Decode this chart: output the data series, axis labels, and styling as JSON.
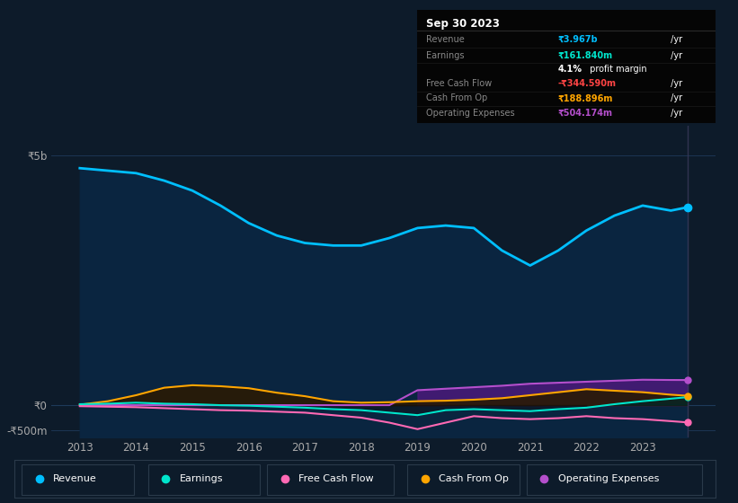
{
  "bg_color": "#0d1b2a",
  "plot_bg_color": "#0d1b2a",
  "years": [
    2013.0,
    2013.5,
    2014.0,
    2014.5,
    2015.0,
    2015.5,
    2016.0,
    2016.5,
    2017.0,
    2017.5,
    2018.0,
    2018.5,
    2019.0,
    2019.5,
    2020.0,
    2020.5,
    2021.0,
    2021.5,
    2022.0,
    2022.5,
    2023.0,
    2023.5,
    2023.8
  ],
  "revenue": [
    4750,
    4700,
    4650,
    4500,
    4300,
    4000,
    3650,
    3400,
    3250,
    3200,
    3200,
    3350,
    3550,
    3600,
    3550,
    3100,
    2800,
    3100,
    3500,
    3800,
    4000,
    3900,
    3967
  ],
  "earnings": [
    20,
    30,
    50,
    30,
    20,
    0,
    -10,
    -30,
    -50,
    -80,
    -100,
    -150,
    -200,
    -100,
    -80,
    -100,
    -120,
    -80,
    -50,
    20,
    80,
    130,
    162
  ],
  "fcf": [
    -20,
    -30,
    -40,
    -60,
    -80,
    -100,
    -110,
    -130,
    -150,
    -200,
    -250,
    -350,
    -480,
    -350,
    -220,
    -260,
    -280,
    -260,
    -220,
    -260,
    -280,
    -320,
    -345
  ],
  "cash_op": [
    10,
    80,
    200,
    350,
    400,
    380,
    340,
    250,
    180,
    80,
    50,
    60,
    80,
    90,
    110,
    140,
    200,
    260,
    320,
    290,
    260,
    210,
    189
  ],
  "op_exp": [
    0,
    0,
    0,
    0,
    0,
    0,
    0,
    0,
    0,
    0,
    0,
    0,
    300,
    330,
    360,
    390,
    430,
    450,
    470,
    490,
    510,
    505,
    504
  ],
  "revenue_color": "#00bfff",
  "earnings_color": "#00e5cc",
  "fcf_color": "#ff69b4",
  "cash_op_color": "#ffa500",
  "op_exp_color": "#b44fcc",
  "ylabel_5b": "₹5b",
  "ylabel_0": "₹0",
  "ylabel_neg500m": "-₹500m",
  "xticklabels": [
    "2013",
    "2014",
    "2015",
    "2016",
    "2017",
    "2018",
    "2019",
    "2020",
    "2021",
    "2022",
    "2023"
  ],
  "xtick_positions": [
    2013,
    2014,
    2015,
    2016,
    2017,
    2018,
    2019,
    2020,
    2021,
    2022,
    2023
  ],
  "ylim_min": -650,
  "ylim_max": 5600,
  "xlim_min": 2012.5,
  "xlim_max": 2024.3,
  "vline_x": 2023.8,
  "dot_x": 2023.8,
  "dot_revenue": 3967,
  "dot_earnings": 162,
  "dot_fcf": -345,
  "dot_cash_op": 189,
  "dot_op_exp": 504,
  "tooltip_title": "Sep 30 2023",
  "tooltip_rows": [
    {
      "label": "Revenue",
      "value": "₹3.967b",
      "suffix": " /yr",
      "vcolor": "#00bfff",
      "bold": true
    },
    {
      "label": "Earnings",
      "value": "₹161.840m",
      "suffix": " /yr",
      "vcolor": "#00e5cc",
      "bold": true
    },
    {
      "label": "",
      "value": "4.1%",
      "suffix": " profit margin",
      "vcolor": "white",
      "bold": true
    },
    {
      "label": "Free Cash Flow",
      "value": "-₹344.590m",
      "suffix": " /yr",
      "vcolor": "#ff4444",
      "bold": true
    },
    {
      "label": "Cash From Op",
      "value": "₹188.896m",
      "suffix": " /yr",
      "vcolor": "#ffa500",
      "bold": true
    },
    {
      "label": "Operating Expenses",
      "value": "₹504.174m",
      "suffix": " /yr",
      "vcolor": "#b44fcc",
      "bold": true
    }
  ],
  "legend_labels": [
    "Revenue",
    "Earnings",
    "Free Cash Flow",
    "Cash From Op",
    "Operating Expenses"
  ],
  "legend_colors": [
    "#00bfff",
    "#00e5cc",
    "#ff69b4",
    "#ffa500",
    "#b44fcc"
  ]
}
